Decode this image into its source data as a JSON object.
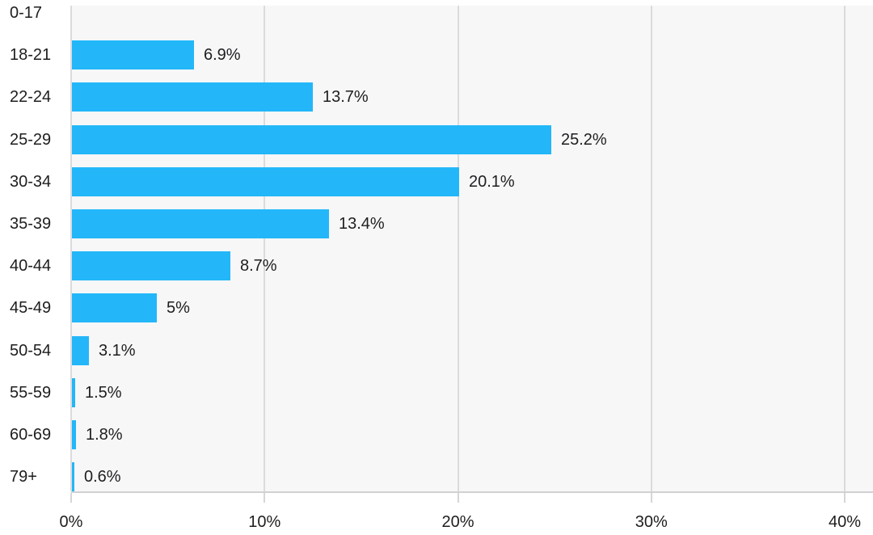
{
  "chart_data": {
    "type": "bar",
    "orientation": "horizontal",
    "title": "",
    "xlabel": "",
    "ylabel": "",
    "categories": [
      "0-17",
      "18-21",
      "22-24",
      "25-29",
      "30-34",
      "35-39",
      "40-44",
      "45-49",
      "50-54",
      "55-59",
      "60-69",
      "79+"
    ],
    "values": [
      0,
      6.9,
      13.7,
      25.2,
      20.1,
      13.4,
      8.7,
      5,
      3.1,
      1.5,
      1.8,
      0.6
    ],
    "value_labels": [
      "",
      "6.9%",
      "13.7%",
      "25.2%",
      "20.1%",
      "13.4%",
      "8.7%",
      "5%",
      "3.1%",
      "1.5%",
      "1.8%",
      "0.6%"
    ],
    "bar_display_pct": [
      0,
      6.3,
      12.45,
      24.8,
      20.0,
      13.3,
      8.2,
      4.4,
      0.88,
      0.17,
      0.21,
      0.13
    ],
    "x_tick_labels": [
      "0%",
      "10%",
      "20%",
      "30%",
      "40%"
    ],
    "x_tick_values": [
      0,
      10,
      20,
      30,
      40
    ],
    "xlim": [
      0,
      40
    ],
    "grid": "vertical",
    "legend": "none",
    "colors": {
      "bar": "#23b7f9",
      "plot_background": "#f7f7f8",
      "gridline": "#dbdbdd",
      "axis_line": "#d1d1d3",
      "text": "#1d1e20"
    }
  }
}
